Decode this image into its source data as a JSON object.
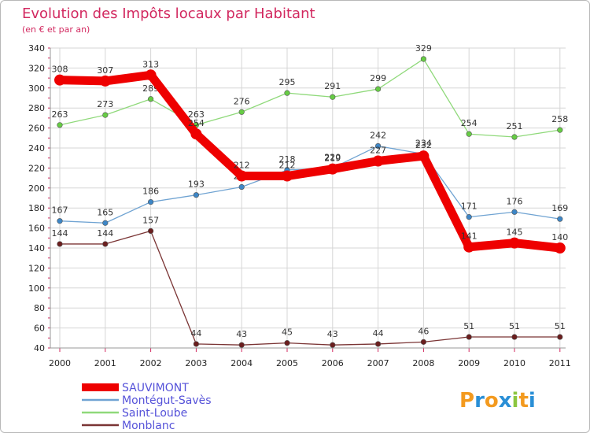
{
  "colors": {
    "title": "#d2285f",
    "legend_text": "#5552d9",
    "grid": "#d6d6d6"
  },
  "chart_data": {
    "type": "line",
    "title": "Evolution des Impôts locaux par Habitant",
    "subtitle": "(en € et par an)",
    "x": [
      "2000",
      "2001",
      "2002",
      "2003",
      "2004",
      "2005",
      "2006",
      "2007",
      "2008",
      "2009",
      "2010",
      "2011"
    ],
    "ylim": [
      40,
      340
    ],
    "yticks": [
      40,
      60,
      80,
      100,
      120,
      140,
      160,
      180,
      200,
      220,
      240,
      260,
      280,
      300,
      320,
      340
    ],
    "grid": true,
    "legend_position": "bottom-left",
    "series": [
      {
        "name": "SAUVIMONT",
        "color": "#ee0000",
        "emphasis": true,
        "values": [
          308,
          307,
          313,
          254,
          212,
          212,
          219,
          227,
          232,
          141,
          145,
          140
        ],
        "labels": [
          "308",
          "307",
          "313",
          "254",
          "212",
          "212",
          "219",
          "227",
          "232",
          "141",
          "145",
          "140"
        ]
      },
      {
        "name": "Montégut-Savès",
        "color": "#6fa3d2",
        "marker": "#3d86c6",
        "values": [
          167,
          165,
          186,
          193,
          201,
          218,
          220,
          242,
          234,
          171,
          176,
          169
        ],
        "labels": [
          "167",
          "165",
          "186",
          "193",
          "201",
          "218",
          "220",
          "242",
          "234",
          "171",
          "176",
          "169"
        ]
      },
      {
        "name": "Saint-Loube",
        "color": "#8fd97a",
        "marker": "#66cc44",
        "values": [
          263,
          273,
          289,
          263,
          276,
          295,
          291,
          299,
          329,
          254,
          251,
          258
        ],
        "labels": [
          "263",
          "273",
          "289",
          "263",
          "276",
          "295",
          "291",
          "299",
          "329",
          "254",
          "251",
          "258"
        ]
      },
      {
        "name": "Monblanc",
        "color": "#7a3434",
        "marker": "#6b1e1e",
        "values": [
          144,
          144,
          157,
          44,
          43,
          45,
          43,
          44,
          46,
          51,
          51,
          51
        ],
        "labels": [
          "144",
          "144",
          "157",
          "44",
          "43",
          "45",
          "43",
          "44",
          "46",
          "51",
          "51",
          "51"
        ]
      }
    ]
  },
  "logo": {
    "text": "Proxiti"
  }
}
